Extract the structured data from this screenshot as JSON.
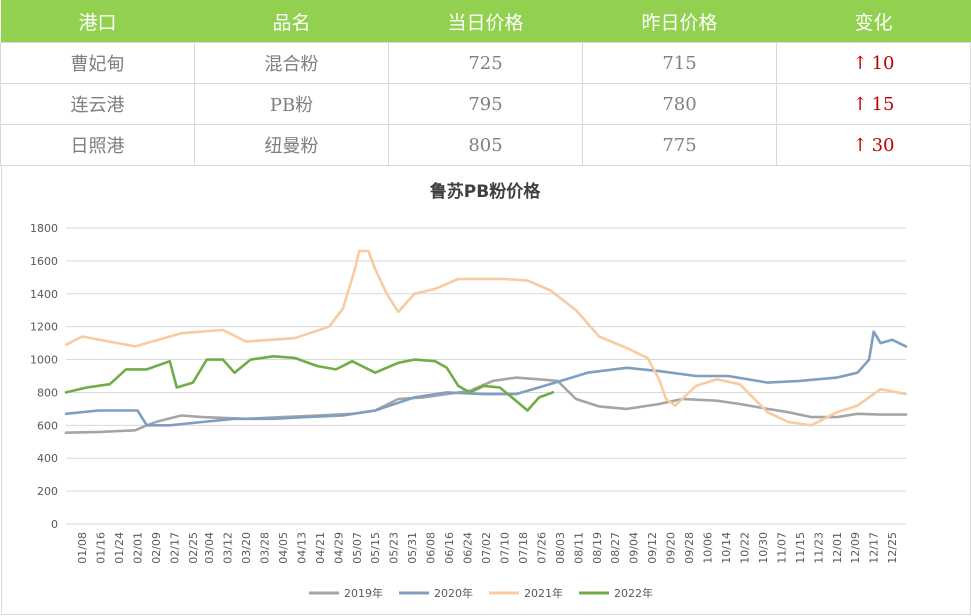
{
  "table": {
    "headers": [
      "港口",
      "品名",
      "当日价格",
      "昨日价格",
      "变化"
    ],
    "rows": [
      {
        "port": "曹妃甸",
        "product": "混合粉",
        "today": "725",
        "yesterday": "715",
        "change_arrow": "↑",
        "change": "10"
      },
      {
        "port": "连云港",
        "product": "PB粉",
        "today": "795",
        "yesterday": "780",
        "change_arrow": "↑",
        "change": "15"
      },
      {
        "port": "日照港",
        "product": "纽曼粉",
        "today": "805",
        "yesterday": "775",
        "change_arrow": "↑",
        "change": "30"
      }
    ],
    "colors": {
      "header_bg": "#92d050",
      "up": "#c00000"
    }
  },
  "chart_data": {
    "type": "line",
    "title": "鲁苏PB粉价格",
    "ylim": [
      0,
      1800
    ],
    "yticks": [
      0,
      200,
      400,
      600,
      800,
      1000,
      1200,
      1400,
      1600,
      1800
    ],
    "x_labels": [
      "01/08",
      "01/16",
      "01/24",
      "02/01",
      "02/09",
      "02/17",
      "02/25",
      "03/04",
      "03/12",
      "03/20",
      "03/28",
      "04/05",
      "04/13",
      "04/21",
      "04/29",
      "05/07",
      "05/15",
      "05/23",
      "05/31",
      "06/08",
      "06/16",
      "06/24",
      "07/02",
      "07/10",
      "07/18",
      "07/26",
      "08/03",
      "08/11",
      "08/19",
      "08/27",
      "09/04",
      "09/12",
      "09/20",
      "09/28",
      "10/06",
      "10/14",
      "10/22",
      "10/30",
      "11/07",
      "11/15",
      "11/23",
      "12/01",
      "12/09",
      "12/17",
      "12/25"
    ],
    "legend_position": "bottom",
    "grid": true,
    "series": [
      {
        "name": "2019年",
        "color": "#a5a5a5",
        "x": [
          "01/01",
          "01/16",
          "01/31",
          "02/05",
          "02/10",
          "02/20",
          "03/01",
          "03/20",
          "04/05",
          "04/20",
          "05/05",
          "05/15",
          "05/25",
          "06/05",
          "06/15",
          "06/25",
          "07/05",
          "07/15",
          "07/25",
          "08/02",
          "08/10",
          "08/20",
          "09/01",
          "09/15",
          "09/25",
          "10/10",
          "10/20",
          "11/01",
          "11/10",
          "11/20",
          "12/01",
          "12/10",
          "12/20",
          "12/31"
        ],
        "values": [
          555,
          560,
          570,
          600,
          625,
          660,
          650,
          640,
          650,
          660,
          670,
          690,
          760,
          770,
          790,
          810,
          870,
          890,
          880,
          870,
          760,
          715,
          700,
          730,
          760,
          750,
          730,
          700,
          680,
          650,
          650,
          670,
          665,
          665
        ]
      },
      {
        "name": "2020年",
        "color": "#7f9fc0",
        "x": [
          "01/01",
          "01/15",
          "02/01",
          "02/05",
          "02/15",
          "03/01",
          "03/15",
          "04/01",
          "04/15",
          "05/01",
          "05/15",
          "06/01",
          "06/15",
          "07/01",
          "07/15",
          "08/01",
          "08/15",
          "09/01",
          "09/15",
          "10/01",
          "10/15",
          "11/01",
          "11/15",
          "12/01",
          "12/10",
          "12/15",
          "12/17",
          "12/20",
          "12/25",
          "12/31"
        ],
        "values": [
          670,
          690,
          690,
          600,
          600,
          620,
          640,
          640,
          650,
          660,
          690,
          770,
          800,
          790,
          790,
          860,
          920,
          950,
          930,
          900,
          900,
          860,
          870,
          890,
          920,
          1000,
          1170,
          1100,
          1120,
          1080
        ]
      },
      {
        "name": "2021年",
        "color": "#f8cba0",
        "x": [
          "01/01",
          "01/08",
          "01/31",
          "02/20",
          "03/10",
          "03/20",
          "04/10",
          "04/25",
          "05/01",
          "05/06",
          "05/08",
          "05/12",
          "05/15",
          "05/20",
          "05/25",
          "06/01",
          "06/10",
          "06/20",
          "07/01",
          "07/10",
          "07/20",
          "07/30",
          "08/10",
          "08/20",
          "09/01",
          "09/10",
          "09/15",
          "09/18",
          "09/22",
          "10/01",
          "10/10",
          "10/20",
          "11/01",
          "11/10",
          "11/20",
          "12/01",
          "12/10",
          "12/20",
          "12/31"
        ],
        "values": [
          1090,
          1140,
          1080,
          1160,
          1180,
          1110,
          1130,
          1200,
          1310,
          1540,
          1660,
          1660,
          1550,
          1400,
          1290,
          1400,
          1430,
          1490,
          1490,
          1490,
          1480,
          1420,
          1300,
          1140,
          1070,
          1010,
          880,
          760,
          720,
          840,
          880,
          850,
          680,
          620,
          600,
          680,
          720,
          820,
          790
        ]
      },
      {
        "name": "2022年",
        "color": "#70ad47",
        "x": [
          "01/01",
          "01/10",
          "01/20",
          "01/27",
          "02/05",
          "02/15",
          "02/18",
          "02/25",
          "03/03",
          "03/10",
          "03/15",
          "03/22",
          "04/01",
          "04/10",
          "04/20",
          "04/28",
          "05/05",
          "05/15",
          "05/25",
          "06/01",
          "06/10",
          "06/15",
          "06/20",
          "06/25",
          "07/01",
          "07/08",
          "07/15",
          "07/20",
          "07/25",
          "07/31"
        ],
        "values": [
          800,
          830,
          850,
          940,
          940,
          990,
          830,
          860,
          1000,
          1000,
          920,
          1000,
          1020,
          1010,
          960,
          940,
          990,
          920,
          980,
          1000,
          990,
          950,
          840,
          800,
          840,
          830,
          750,
          690,
          770,
          800
        ]
      }
    ]
  }
}
